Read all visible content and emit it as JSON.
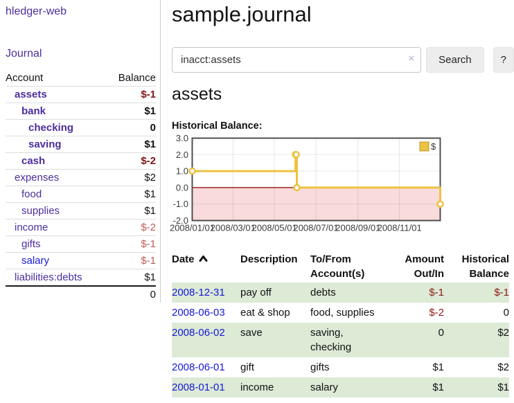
{
  "app": {
    "brand": "hledger-web",
    "nav_journal": "Journal"
  },
  "sidebar": {
    "account_header": "Account",
    "balance_header": "Balance",
    "rows": [
      {
        "name": "assets",
        "balance": "$-1",
        "depth": 0,
        "bold": true,
        "balance_style": "neg-strong",
        "link": "purple"
      },
      {
        "name": "bank",
        "balance": "$1",
        "depth": 1,
        "bold": true,
        "balance_style": "normal",
        "link": "purple"
      },
      {
        "name": "checking",
        "balance": "0",
        "depth": 2,
        "bold": true,
        "balance_style": "normal",
        "link": "purple"
      },
      {
        "name": "saving",
        "balance": "$1",
        "depth": 2,
        "bold": true,
        "balance_style": "normal",
        "link": "purple"
      },
      {
        "name": "cash",
        "balance": "$-2",
        "depth": 1,
        "bold": true,
        "balance_style": "neg-strong",
        "link": "purple"
      },
      {
        "name": "expenses",
        "balance": "$2",
        "depth": 0,
        "bold": false,
        "balance_style": "normal",
        "link": "purple"
      },
      {
        "name": "food",
        "balance": "$1",
        "depth": 1,
        "bold": false,
        "balance_style": "normal",
        "link": "purple"
      },
      {
        "name": "supplies",
        "balance": "$1",
        "depth": 1,
        "bold": false,
        "balance_style": "normal",
        "link": "purple"
      },
      {
        "name": "income",
        "balance": "$-2",
        "depth": 0,
        "bold": false,
        "balance_style": "neg-soft",
        "link": "purple"
      },
      {
        "name": "gifts",
        "balance": "$-1",
        "depth": 1,
        "bold": false,
        "balance_style": "neg-soft",
        "link": "purple"
      },
      {
        "name": "salary",
        "balance": "$-1",
        "depth": 1,
        "bold": false,
        "balance_style": "neg-soft",
        "link": "blue"
      },
      {
        "name": "liabilities:debts",
        "balance": "$1",
        "depth": 0,
        "bold": false,
        "balance_style": "normal",
        "link": "purple"
      }
    ],
    "total": "0"
  },
  "header": {
    "title": "sample.journal"
  },
  "search": {
    "value": "inacct:assets",
    "clear_icon": "×",
    "button_label": "Search",
    "help_label": "?"
  },
  "account_page": {
    "heading": "assets",
    "chart_label": "Historical Balance:"
  },
  "chart_data": {
    "type": "line",
    "step": true,
    "title": "Historical Balance:",
    "series": [
      {
        "name": "$",
        "color": "#edc240",
        "points": [
          [
            "2008/01/01",
            1
          ],
          [
            "2008/06/01",
            2
          ],
          [
            "2008/06/02",
            2
          ],
          [
            "2008/06/03",
            0
          ],
          [
            "2008/12/31",
            -1
          ]
        ]
      }
    ],
    "x_ticks": [
      "2008/01/01",
      "2008/03/01",
      "2008/05/01",
      "2008/07/01",
      "2008/09/01",
      "2008/11/01"
    ],
    "y_ticks": [
      3.0,
      2.0,
      1.0,
      0.0,
      -1.0,
      -2.0
    ],
    "xlim": [
      "2008/01/01",
      "2008/12/31"
    ],
    "ylim": [
      -2,
      3
    ],
    "grid": true,
    "legend": {
      "label": "$",
      "position": "top-right"
    },
    "negative_fill": "#f9dbdb",
    "zero_line_color": "#8b0000",
    "border_color": "#4f4f4f"
  },
  "register": {
    "headers": [
      "Date",
      "Description",
      "To/From Account(s)",
      "Amount Out/In",
      "Historical Balance"
    ],
    "sort": "ascending",
    "rows": [
      {
        "date": "2008-12-31",
        "description": "pay off",
        "accounts": "debts",
        "amount": "$-1",
        "amount_negative": true,
        "balance": "$-1",
        "balance_negative": true
      },
      {
        "date": "2008-06-03",
        "description": "eat & shop",
        "accounts": "food, supplies",
        "amount": "$-2",
        "amount_negative": true,
        "balance": "0",
        "balance_negative": false
      },
      {
        "date": "2008-06-02",
        "description": "save",
        "accounts": "saving,\nchecking",
        "amount": "0",
        "amount_negative": false,
        "balance": "$2",
        "balance_negative": false
      },
      {
        "date": "2008-06-01",
        "description": "gift",
        "accounts": "gifts",
        "amount": "$1",
        "amount_negative": false,
        "balance": "$2",
        "balance_negative": false
      },
      {
        "date": "2008-01-01",
        "description": "income",
        "accounts": "salary",
        "amount": "$1",
        "amount_negative": false,
        "balance": "$1",
        "balance_negative": false
      }
    ]
  }
}
